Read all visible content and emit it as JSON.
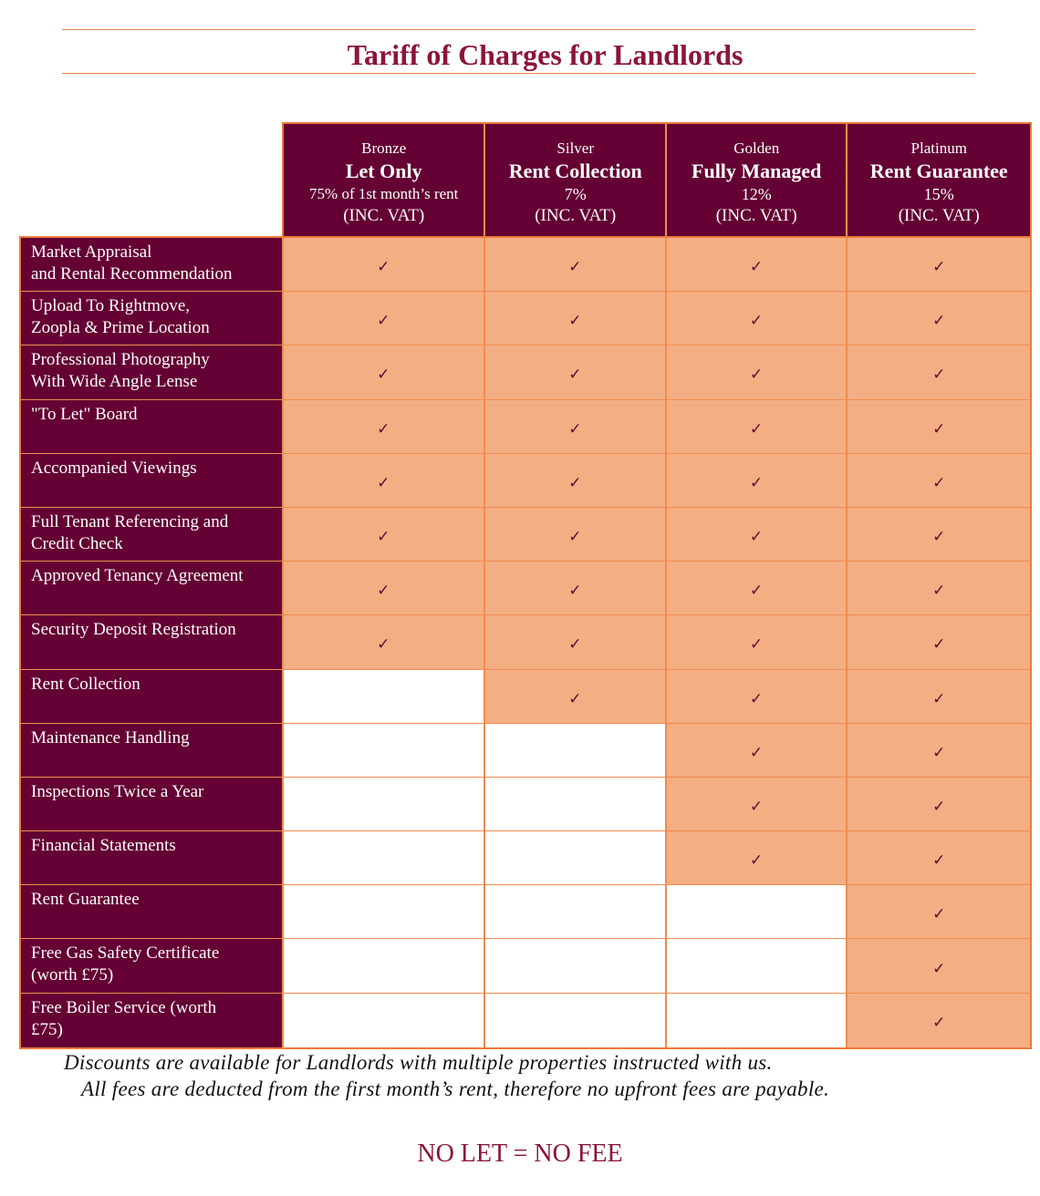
{
  "title": "Tariff of Charges for Landlords",
  "colors": {
    "maroon": "#640033",
    "orange": "#f4ae84",
    "title": "#8b1538",
    "border": "#ec7a3c"
  },
  "plans": [
    {
      "tier": "Bronze",
      "name": "Let Only",
      "price": "75% of 1st month’s rent",
      "vat": "(INC. VAT)"
    },
    {
      "tier": "Silver",
      "name": "Rent Collection",
      "price": "7%",
      "vat": "(INC. VAT)"
    },
    {
      "tier": "Golden",
      "name": "Fully Managed",
      "price": "12%",
      "vat": "(INC. VAT)"
    },
    {
      "tier": "Platinum",
      "name": "Rent Guarantee",
      "price": "15%",
      "vat": "(INC. VAT)"
    }
  ],
  "check_mark": "✓",
  "features": [
    {
      "label": "Market Appraisal\nand Rental Recommendation",
      "plans": [
        true,
        true,
        true,
        true
      ]
    },
    {
      "label": "Upload To Rightmove,\nZoopla & Prime Location",
      "plans": [
        true,
        true,
        true,
        true
      ]
    },
    {
      "label": "Professional Photography\nWith Wide Angle Lense",
      "plans": [
        true,
        true,
        true,
        true
      ]
    },
    {
      "label": "\"To Let\" Board",
      "plans": [
        true,
        true,
        true,
        true
      ]
    },
    {
      "label": "Accompanied Viewings",
      "plans": [
        true,
        true,
        true,
        true
      ]
    },
    {
      "label": "Full Tenant Referencing  and\nCredit Check",
      "plans": [
        true,
        true,
        true,
        true
      ]
    },
    {
      "label": "Approved Tenancy Agreement",
      "plans": [
        true,
        true,
        true,
        true
      ]
    },
    {
      "label": "Security Deposit Registration",
      "plans": [
        true,
        true,
        true,
        true
      ]
    },
    {
      "label": "Rent Collection",
      "plans": [
        false,
        true,
        true,
        true
      ]
    },
    {
      "label": "Maintenance Handling",
      "plans": [
        false,
        false,
        true,
        true
      ]
    },
    {
      "label": "Inspections Twice a Year",
      "plans": [
        false,
        false,
        true,
        true
      ]
    },
    {
      "label": "Financial Statements",
      "plans": [
        false,
        false,
        true,
        true
      ]
    },
    {
      "label": "Rent Guarantee",
      "plans": [
        false,
        false,
        false,
        true
      ]
    },
    {
      "label": "Free Gas Safety Certificate\n(worth £75)",
      "plans": [
        false,
        false,
        false,
        true
      ]
    },
    {
      "label": "Free Boiler Service (worth\n£75)",
      "plans": [
        false,
        false,
        false,
        true
      ]
    }
  ],
  "footer": {
    "line1": "Discounts are available for Landlords with multiple properties instructed with us.",
    "line2": "All fees are deducted from the first month’s rent, therefore no upfront fees are payable.",
    "slogan": "NO LET = NO FEE"
  }
}
